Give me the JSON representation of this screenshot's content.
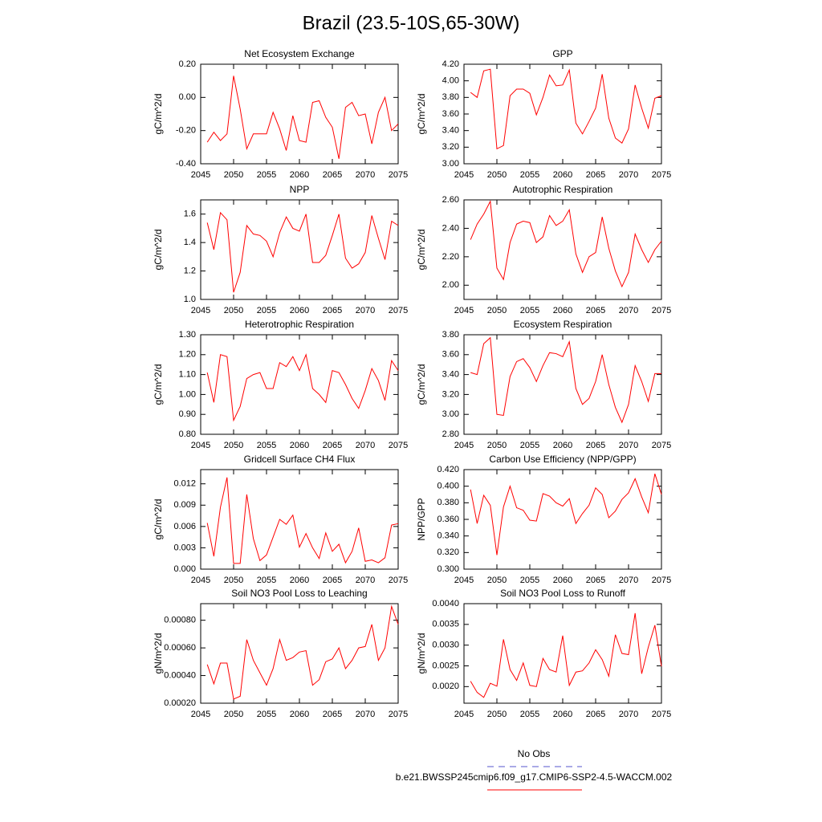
{
  "title": "Brazil (23.5-10S,65-30W)",
  "chart_data": [
    {
      "type": "line",
      "title": "Net Ecosystem Exchange",
      "ylabel": "gC/m^2/d",
      "color": "#ff0000",
      "x": [
        2046,
        2047,
        2048,
        2049,
        2050,
        2051,
        2052,
        2053,
        2054,
        2055,
        2056,
        2057,
        2058,
        2059,
        2060,
        2061,
        2062,
        2063,
        2064,
        2065,
        2066,
        2067,
        2068,
        2069,
        2070,
        2071,
        2072,
        2073,
        2074,
        2075
      ],
      "values": [
        -0.27,
        -0.21,
        -0.26,
        -0.22,
        0.13,
        -0.07,
        -0.31,
        -0.22,
        -0.22,
        -0.22,
        -0.09,
        -0.19,
        -0.32,
        -0.11,
        -0.26,
        -0.27,
        -0.03,
        -0.02,
        -0.12,
        -0.18,
        -0.37,
        -0.06,
        -0.03,
        -0.11,
        -0.1,
        -0.28,
        -0.09,
        0.0,
        -0.2,
        -0.16
      ],
      "xlim": [
        2045,
        2075
      ],
      "xticks": [
        2045,
        2050,
        2055,
        2060,
        2065,
        2070,
        2075
      ],
      "ylim": [
        -0.4,
        0.2
      ],
      "yticks": [
        {
          "value": -0.4,
          "label": "-0.40"
        },
        {
          "value": -0.2,
          "label": "-0.20"
        },
        {
          "value": 0,
          "label": "0.00"
        },
        {
          "value": 0.2,
          "label": "0.20"
        }
      ]
    },
    {
      "type": "line",
      "title": "GPP",
      "ylabel": "gC/m^2/d",
      "color": "#ff0000",
      "x": [
        2046,
        2047,
        2048,
        2049,
        2050,
        2051,
        2052,
        2053,
        2054,
        2055,
        2056,
        2057,
        2058,
        2059,
        2060,
        2061,
        2062,
        2063,
        2064,
        2065,
        2066,
        2067,
        2068,
        2069,
        2070,
        2071,
        2072,
        2073,
        2074,
        2075
      ],
      "values": [
        3.86,
        3.8,
        4.12,
        4.14,
        3.18,
        3.22,
        3.82,
        3.9,
        3.9,
        3.85,
        3.59,
        3.8,
        4.07,
        3.94,
        3.95,
        4.13,
        3.49,
        3.36,
        3.51,
        3.67,
        4.08,
        3.55,
        3.31,
        3.25,
        3.42,
        3.95,
        3.67,
        3.43,
        3.79,
        3.82
      ],
      "xlim": [
        2045,
        2075
      ],
      "xticks": [
        2045,
        2050,
        2055,
        2060,
        2065,
        2070,
        2075
      ],
      "ylim": [
        3.0,
        4.2
      ],
      "yticks": [
        {
          "value": 3.0,
          "label": "3.00"
        },
        {
          "value": 3.2,
          "label": "3.20"
        },
        {
          "value": 3.4,
          "label": "3.40"
        },
        {
          "value": 3.6,
          "label": "3.60"
        },
        {
          "value": 3.8,
          "label": "3.80"
        },
        {
          "value": 4.0,
          "label": "4.00"
        },
        {
          "value": 4.2,
          "label": "4.20"
        }
      ]
    },
    {
      "type": "line",
      "title": "NPP",
      "ylabel": "gC/m^2/d",
      "color": "#ff0000",
      "x": [
        2046,
        2047,
        2048,
        2049,
        2050,
        2051,
        2052,
        2053,
        2054,
        2055,
        2056,
        2057,
        2058,
        2059,
        2060,
        2061,
        2062,
        2063,
        2064,
        2065,
        2066,
        2067,
        2068,
        2069,
        2070,
        2071,
        2072,
        2073,
        2074,
        2075
      ],
      "values": [
        1.54,
        1.35,
        1.61,
        1.56,
        1.05,
        1.19,
        1.52,
        1.46,
        1.45,
        1.41,
        1.3,
        1.47,
        1.58,
        1.5,
        1.48,
        1.6,
        1.26,
        1.26,
        1.31,
        1.45,
        1.6,
        1.29,
        1.22,
        1.25,
        1.33,
        1.59,
        1.43,
        1.28,
        1.55,
        1.52
      ],
      "xlim": [
        2045,
        2075
      ],
      "xticks": [
        2045,
        2050,
        2055,
        2060,
        2065,
        2070,
        2075
      ],
      "ylim": [
        1.0,
        1.7
      ],
      "yticks": [
        {
          "value": 1.0,
          "label": "1.0"
        },
        1.2,
        1.4,
        1.6
      ]
    },
    {
      "type": "line",
      "title": "Autotrophic Respiration",
      "ylabel": "gC/m^2/d",
      "color": "#ff0000",
      "x": [
        2046,
        2047,
        2048,
        2049,
        2050,
        2051,
        2052,
        2053,
        2054,
        2055,
        2056,
        2057,
        2058,
        2059,
        2060,
        2061,
        2062,
        2063,
        2064,
        2065,
        2066,
        2067,
        2068,
        2069,
        2070,
        2071,
        2072,
        2073,
        2074,
        2075
      ],
      "values": [
        2.32,
        2.43,
        2.5,
        2.59,
        2.12,
        2.04,
        2.3,
        2.43,
        2.45,
        2.44,
        2.3,
        2.34,
        2.49,
        2.42,
        2.45,
        2.53,
        2.22,
        2.09,
        2.2,
        2.23,
        2.48,
        2.26,
        2.1,
        1.99,
        2.09,
        2.36,
        2.25,
        2.16,
        2.25,
        2.31
      ],
      "xlim": [
        2045,
        2075
      ],
      "xticks": [
        2045,
        2050,
        2055,
        2060,
        2065,
        2070,
        2075
      ],
      "ylim": [
        1.9,
        2.6
      ],
      "yticks": [
        {
          "value": 2.0,
          "label": "2.00"
        },
        {
          "value": 2.2,
          "label": "2.20"
        },
        {
          "value": 2.4,
          "label": "2.40"
        },
        {
          "value": 2.6,
          "label": "2.60"
        }
      ]
    },
    {
      "type": "line",
      "title": "Heterotrophic Respiration",
      "ylabel": "gC/m^2/d",
      "color": "#ff0000",
      "x": [
        2046,
        2047,
        2048,
        2049,
        2050,
        2051,
        2052,
        2053,
        2054,
        2055,
        2056,
        2057,
        2058,
        2059,
        2060,
        2061,
        2062,
        2063,
        2064,
        2065,
        2066,
        2067,
        2068,
        2069,
        2070,
        2071,
        2072,
        2073,
        2074,
        2075
      ],
      "values": [
        1.11,
        0.96,
        1.2,
        1.19,
        0.87,
        0.94,
        1.08,
        1.1,
        1.11,
        1.03,
        1.03,
        1.16,
        1.14,
        1.19,
        1.12,
        1.2,
        1.03,
        1.0,
        0.96,
        1.12,
        1.11,
        1.05,
        0.98,
        0.93,
        1.02,
        1.13,
        1.07,
        0.97,
        1.17,
        1.12
      ],
      "xlim": [
        2045,
        2075
      ],
      "xticks": [
        2045,
        2050,
        2055,
        2060,
        2065,
        2070,
        2075
      ],
      "ylim": [
        0.8,
        1.3
      ],
      "yticks": [
        {
          "value": 0.8,
          "label": "0.80"
        },
        {
          "value": 0.9,
          "label": "0.90"
        },
        {
          "value": 1.0,
          "label": "1.00"
        },
        {
          "value": 1.1,
          "label": "1.10"
        },
        {
          "value": 1.2,
          "label": "1.20"
        },
        {
          "value": 1.3,
          "label": "1.30"
        }
      ]
    },
    {
      "type": "line",
      "title": "Ecosystem Respiration",
      "ylabel": "gC/m^2/d",
      "color": "#ff0000",
      "x": [
        2046,
        2047,
        2048,
        2049,
        2050,
        2051,
        2052,
        2053,
        2054,
        2055,
        2056,
        2057,
        2058,
        2059,
        2060,
        2061,
        2062,
        2063,
        2064,
        2065,
        2066,
        2067,
        2068,
        2069,
        2070,
        2071,
        2072,
        2073,
        2074,
        2075
      ],
      "values": [
        3.42,
        3.4,
        3.71,
        3.77,
        3.0,
        2.99,
        3.38,
        3.53,
        3.56,
        3.47,
        3.33,
        3.49,
        3.62,
        3.61,
        3.58,
        3.73,
        3.26,
        3.1,
        3.16,
        3.33,
        3.6,
        3.3,
        3.07,
        2.92,
        3.1,
        3.49,
        3.33,
        3.13,
        3.41,
        3.41
      ],
      "xlim": [
        2045,
        2075
      ],
      "xticks": [
        2045,
        2050,
        2055,
        2060,
        2065,
        2070,
        2075
      ],
      "ylim": [
        2.8,
        3.8
      ],
      "yticks": [
        {
          "value": 2.8,
          "label": "2.80"
        },
        {
          "value": 3.0,
          "label": "3.00"
        },
        {
          "value": 3.2,
          "label": "3.20"
        },
        {
          "value": 3.4,
          "label": "3.40"
        },
        {
          "value": 3.6,
          "label": "3.60"
        },
        {
          "value": 3.8,
          "label": "3.80"
        }
      ]
    },
    {
      "type": "line",
      "title": "Gridcell Surface CH4 Flux",
      "ylabel": "gC/m^2/d",
      "color": "#ff0000",
      "x": [
        2046,
        2047,
        2048,
        2049,
        2050,
        2051,
        2052,
        2053,
        2054,
        2055,
        2056,
        2057,
        2058,
        2059,
        2060,
        2061,
        2062,
        2063,
        2064,
        2065,
        2066,
        2067,
        2068,
        2069,
        2070,
        2071,
        2072,
        2073,
        2074,
        2075
      ],
      "values": [
        0.0065,
        0.0018,
        0.0087,
        0.0129,
        0.0008,
        0.0008,
        0.0105,
        0.0043,
        0.0012,
        0.002,
        0.0045,
        0.007,
        0.0063,
        0.0076,
        0.0031,
        0.005,
        0.003,
        0.0015,
        0.0051,
        0.0025,
        0.0035,
        0.0009,
        0.0025,
        0.0058,
        0.0011,
        0.0013,
        0.0009,
        0.0016,
        0.0062,
        0.0064
      ],
      "xlim": [
        2045,
        2075
      ],
      "xticks": [
        2045,
        2050,
        2055,
        2060,
        2065,
        2070,
        2075
      ],
      "ylim": [
        0,
        0.014
      ],
      "yticks": [
        {
          "value": 0,
          "label": "0.000"
        },
        0.003,
        {
          "value": 0.006,
          "label": "0.006"
        },
        0.009,
        0.012
      ]
    },
    {
      "type": "line",
      "title": "Carbon Use Efficiency (NPP/GPP)",
      "ylabel": "NPP/GPP",
      "color": "#ff0000",
      "x": [
        2046,
        2047,
        2048,
        2049,
        2050,
        2051,
        2052,
        2053,
        2054,
        2055,
        2056,
        2057,
        2058,
        2059,
        2060,
        2061,
        2062,
        2063,
        2064,
        2065,
        2066,
        2067,
        2068,
        2069,
        2070,
        2071,
        2072,
        2073,
        2074,
        2075
      ],
      "values": [
        0.396,
        0.355,
        0.389,
        0.377,
        0.317,
        0.375,
        0.4,
        0.374,
        0.371,
        0.359,
        0.358,
        0.391,
        0.388,
        0.38,
        0.376,
        0.385,
        0.355,
        0.367,
        0.377,
        0.398,
        0.39,
        0.362,
        0.37,
        0.384,
        0.392,
        0.409,
        0.387,
        0.368,
        0.415,
        0.39
      ],
      "xlim": [
        2045,
        2075
      ],
      "xticks": [
        2045,
        2050,
        2055,
        2060,
        2065,
        2070,
        2075
      ],
      "ylim": [
        0.3,
        0.42
      ],
      "yticks": [
        {
          "value": 0.3,
          "label": "0.300"
        },
        {
          "value": 0.32,
          "label": "0.320"
        },
        {
          "value": 0.34,
          "label": "0.340"
        },
        {
          "value": 0.36,
          "label": "0.360"
        },
        {
          "value": 0.38,
          "label": "0.380"
        },
        {
          "value": 0.4,
          "label": "0.400"
        },
        {
          "value": 0.42,
          "label": "0.420"
        }
      ]
    },
    {
      "type": "line",
      "title": "Soil NO3 Pool Loss to Leaching",
      "ylabel": "gN/m^2/d",
      "color": "#ff0000",
      "x": [
        2046,
        2047,
        2048,
        2049,
        2050,
        2051,
        2052,
        2053,
        2054,
        2055,
        2056,
        2057,
        2058,
        2059,
        2060,
        2061,
        2062,
        2063,
        2064,
        2065,
        2066,
        2067,
        2068,
        2069,
        2070,
        2071,
        2072,
        2073,
        2074,
        2075
      ],
      "values": [
        0.00048,
        0.00034,
        0.00049,
        0.00049,
        0.00023,
        0.00025,
        0.00066,
        0.00051,
        0.00042,
        0.00033,
        0.00045,
        0.00066,
        0.00051,
        0.00053,
        0.00057,
        0.00058,
        0.00033,
        0.00037,
        0.0005,
        0.00052,
        0.0006,
        0.00045,
        0.00051,
        0.0006,
        0.00061,
        0.00077,
        0.00051,
        0.0006,
        0.0009,
        0.00077
      ],
      "xlim": [
        2045,
        2075
      ],
      "xticks": [
        2045,
        2050,
        2055,
        2060,
        2065,
        2070,
        2075
      ],
      "ylim": [
        0.0002,
        0.00092
      ],
      "yticks": [
        {
          "value": 0.0002,
          "label": "0.00020"
        },
        {
          "value": 0.0004,
          "label": "0.00040"
        },
        {
          "value": 0.0006,
          "label": "0.00060"
        },
        {
          "value": 0.0008,
          "label": "0.00080"
        }
      ]
    },
    {
      "type": "line",
      "title": "Soil NO3 Pool Loss to Runoff",
      "ylabel": "gN/m^2/d",
      "color": "#ff0000",
      "x": [
        2046,
        2047,
        2048,
        2049,
        2050,
        2051,
        2052,
        2053,
        2054,
        2055,
        2056,
        2057,
        2058,
        2059,
        2060,
        2061,
        2062,
        2063,
        2064,
        2065,
        2066,
        2067,
        2068,
        2069,
        2070,
        2071,
        2072,
        2073,
        2074,
        2075
      ],
      "values": [
        0.00213,
        0.00186,
        0.00174,
        0.00208,
        0.00201,
        0.00314,
        0.00241,
        0.00215,
        0.00257,
        0.00203,
        0.002,
        0.00268,
        0.00241,
        0.00235,
        0.00323,
        0.00203,
        0.00235,
        0.00238,
        0.00257,
        0.00289,
        0.00265,
        0.00225,
        0.00325,
        0.0028,
        0.00277,
        0.00377,
        0.00231,
        0.00295,
        0.00348,
        0.00249
      ],
      "xlim": [
        2045,
        2075
      ],
      "xticks": [
        2045,
        2050,
        2055,
        2060,
        2065,
        2070,
        2075
      ],
      "ylim": [
        0.0016,
        0.004
      ],
      "yticks": [
        {
          "value": 0.002,
          "label": "0.0020"
        },
        {
          "value": 0.0025,
          "label": "0.0025"
        },
        {
          "value": 0.003,
          "label": "0.0030"
        },
        {
          "value": 0.0035,
          "label": "0.0035"
        },
        {
          "value": 0.004,
          "label": "0.0040"
        }
      ]
    }
  ],
  "legend": [
    {
      "name": "No Obs",
      "color": "#5555cc",
      "dashed": true
    },
    {
      "name": "b.e21.BWSSP245cmip6.f09_g17.CMIP6-SSP2-4.5-WACCM.002",
      "color": "#ff0000",
      "dashed": false
    }
  ]
}
